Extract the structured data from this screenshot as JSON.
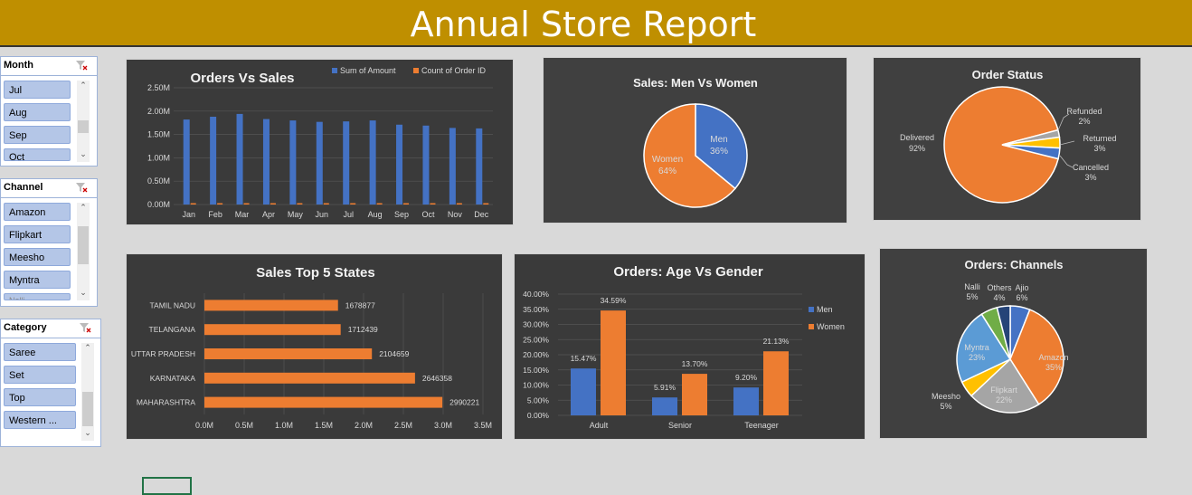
{
  "report": {
    "title": "Annual Store Report"
  },
  "slicers": {
    "month": {
      "header": "Month",
      "items": [
        "Jul",
        "Aug",
        "Sep",
        "Oct"
      ]
    },
    "channel": {
      "header": "Channel",
      "items": [
        "Amazon",
        "Flipkart",
        "Meesho",
        "Myntra",
        "Nalli"
      ]
    },
    "category": {
      "header": "Category",
      "items": [
        "Saree",
        "Set",
        "Top",
        "Western ..."
      ]
    }
  },
  "colors": {
    "banner": "#bf8f00",
    "blue": "#4472c4",
    "orange": "#ed7d31",
    "gray": "#a5a5a5",
    "yellow": "#ffc000",
    "lightblue": "#5b9bd5",
    "green": "#70ad47",
    "navy": "#264478"
  },
  "chart_data": [
    {
      "id": "orders-vs-sales",
      "type": "bar",
      "title": "Orders Vs Sales",
      "categories": [
        "Jan",
        "Feb",
        "Mar",
        "Apr",
        "May",
        "Jun",
        "Jul",
        "Aug",
        "Sep",
        "Oct",
        "Nov",
        "Dec"
      ],
      "series": [
        {
          "name": "Sum of Amount",
          "values": [
            1820000,
            1880000,
            1940000,
            1830000,
            1800000,
            1770000,
            1780000,
            1800000,
            1710000,
            1690000,
            1640000,
            1630000
          ]
        },
        {
          "name": "Count of Order ID",
          "values": [
            2500,
            2550,
            2600,
            2500,
            2450,
            2400,
            2400,
            2450,
            2350,
            2300,
            2250,
            2250
          ]
        }
      ],
      "yticks": [
        "0.00M",
        "0.50M",
        "1.00M",
        "1.50M",
        "2.00M",
        "2.50M"
      ],
      "ylim": [
        0,
        2500000
      ],
      "legend": "top"
    },
    {
      "id": "sales-men-vs-women",
      "type": "pie",
      "title": "Sales: Men Vs Women",
      "slices": [
        {
          "label": "Men",
          "value": 36,
          "pct": "36%"
        },
        {
          "label": "Women",
          "value": 64,
          "pct": "64%"
        }
      ]
    },
    {
      "id": "order-status",
      "type": "pie",
      "title": "Order Status",
      "slices": [
        {
          "label": "Delivered",
          "value": 92,
          "pct": "92%"
        },
        {
          "label": "Refunded",
          "value": 2,
          "pct": "2%"
        },
        {
          "label": "Returned",
          "value": 3,
          "pct": "3%"
        },
        {
          "label": "Cancelled",
          "value": 3,
          "pct": "3%"
        }
      ]
    },
    {
      "id": "sales-top-5-states",
      "type": "bar",
      "orientation": "horizontal",
      "title": "Sales Top 5 States",
      "categories": [
        "TAMIL NADU",
        "TELANGANA",
        "UTTAR PRADESH",
        "KARNATAKA",
        "MAHARASHTRA"
      ],
      "values": [
        1678877,
        1712439,
        2104659,
        2646358,
        2990221
      ],
      "value_labels": [
        "1678877",
        "1712439",
        "2104659",
        "2646358",
        "2990221"
      ],
      "xticks": [
        "0.0M",
        "0.5M",
        "1.0M",
        "1.5M",
        "2.0M",
        "2.5M",
        "3.0M",
        "3.5M"
      ],
      "xlim": [
        0,
        3500000
      ]
    },
    {
      "id": "orders-age-vs-gender",
      "type": "bar",
      "title": "Orders:  Age Vs Gender",
      "categories": [
        "Adult",
        "Senior",
        "Teenager"
      ],
      "series": [
        {
          "name": "Men",
          "values": [
            15.47,
            5.91,
            9.2
          ],
          "labels": [
            "15.47%",
            "5.91%",
            "9.20%"
          ]
        },
        {
          "name": "Women",
          "values": [
            34.59,
            13.7,
            21.13
          ],
          "labels": [
            "34.59%",
            "13.70%",
            "21.13%"
          ]
        }
      ],
      "yticks": [
        "0.00%",
        "5.00%",
        "10.00%",
        "15.00%",
        "20.00%",
        "25.00%",
        "30.00%",
        "35.00%",
        "40.00%"
      ],
      "ylim": [
        0,
        40
      ],
      "legend": "right"
    },
    {
      "id": "orders-channels",
      "type": "pie",
      "title": "Orders: Channels",
      "slices": [
        {
          "label": "Ajio",
          "value": 6,
          "pct": "6%"
        },
        {
          "label": "Amazon",
          "value": 35,
          "pct": "35%"
        },
        {
          "label": "Flipkart",
          "value": 22,
          "pct": "22%"
        },
        {
          "label": "Meesho",
          "value": 5,
          "pct": "5%"
        },
        {
          "label": "Myntra",
          "value": 23,
          "pct": "23%"
        },
        {
          "label": "Nalli",
          "value": 5,
          "pct": "5%"
        },
        {
          "label": "Others",
          "value": 4,
          "pct": "4%"
        }
      ]
    }
  ]
}
